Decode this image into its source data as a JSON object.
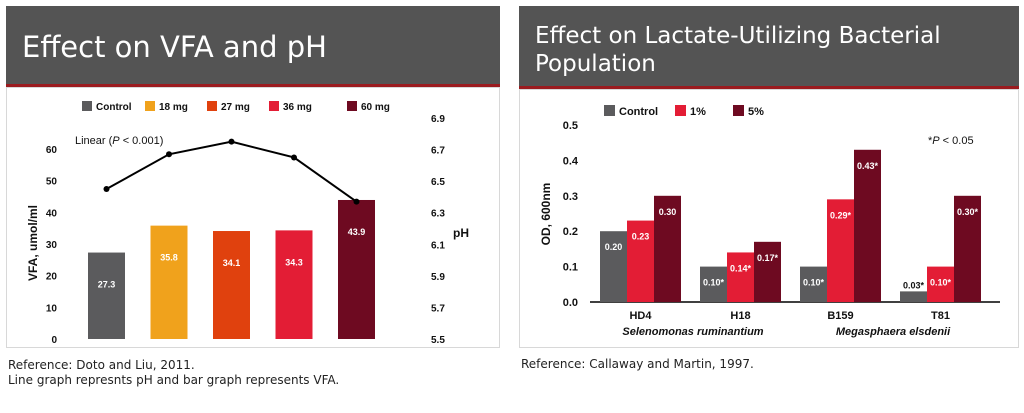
{
  "left": {
    "title": "Effect on VFA and pH",
    "reference": "Reference:  Doto and Liu, 2011.",
    "note": "Line graph represnts pH and bar graph represents VFA."
  },
  "right": {
    "title_line1": "Effect on Lactate-Utilizing Bacterial",
    "title_line2": "Population",
    "reference": "Reference:  Callaway and Martin, 1997."
  },
  "chart_data": [
    {
      "type": "bar",
      "categories": [
        "Control",
        "18 mg",
        "27 mg",
        "36 mg",
        "60 mg"
      ],
      "values": [
        27.3,
        35.8,
        34.1,
        34.3,
        43.9
      ],
      "value_labels": [
        "27.3",
        "35.8",
        "34.1",
        "34.3",
        "43.9"
      ],
      "colors": [
        "#5b5b5d",
        "#f0a21c",
        "#e0410e",
        "#e31d35",
        "#6e0a21"
      ],
      "legend": [
        "Control",
        "18 mg",
        "27 mg",
        "36 mg",
        "60 mg"
      ],
      "ylabel": "VFA, umol/ml",
      "ylim": [
        0,
        65
      ],
      "yticks": [
        0,
        10,
        20,
        30,
        40,
        50,
        60
      ],
      "y2label": "pH",
      "y2lim": [
        5.5,
        6.9
      ],
      "y2ticks": [
        "5.5",
        "5.7",
        "5.9",
        "6.1",
        "6.3",
        "6.5",
        "6.7",
        "6.9"
      ],
      "line_series": {
        "name": "pH",
        "values": [
          6.45,
          6.67,
          6.75,
          6.65,
          6.37
        ]
      },
      "annotation_prefix": "Linear (",
      "annotation_italic": "P",
      "annotation_suffix": " < 0.001)",
      "grid": false,
      "legend_position": "top"
    },
    {
      "type": "bar",
      "categories": [
        "HD4",
        "H18",
        "B159",
        "T81"
      ],
      "group_labels": [
        "Selenomonas ruminantium",
        "Megasphaera elsdenii"
      ],
      "series": [
        {
          "name": "Control",
          "color": "#5b5b5d",
          "values": [
            0.2,
            0.1,
            0.1,
            0.03
          ],
          "labels": [
            "0.20",
            "0.10*",
            "0.10*",
            "0.03*"
          ]
        },
        {
          "name": "1%",
          "color": "#e31d35",
          "values": [
            0.23,
            0.14,
            0.29,
            0.1
          ],
          "labels": [
            "0.23",
            "0.14*",
            "0.29*",
            "0.10*"
          ]
        },
        {
          "name": "5%",
          "color": "#6e0a21",
          "values": [
            0.3,
            0.17,
            0.43,
            0.3
          ],
          "labels": [
            "0.30",
            "0.17*",
            "0.43*",
            "0.30*"
          ]
        }
      ],
      "ylabel": "OD, 600nm",
      "ylim": [
        0,
        0.5
      ],
      "yticks": [
        "0.0",
        "0.1",
        "0.2",
        "0.3",
        "0.4",
        "0.5"
      ],
      "annotation_prefix": "*",
      "annotation_italic": "P",
      "annotation_suffix": " < 0.05",
      "grid": false,
      "legend_position": "top"
    }
  ]
}
